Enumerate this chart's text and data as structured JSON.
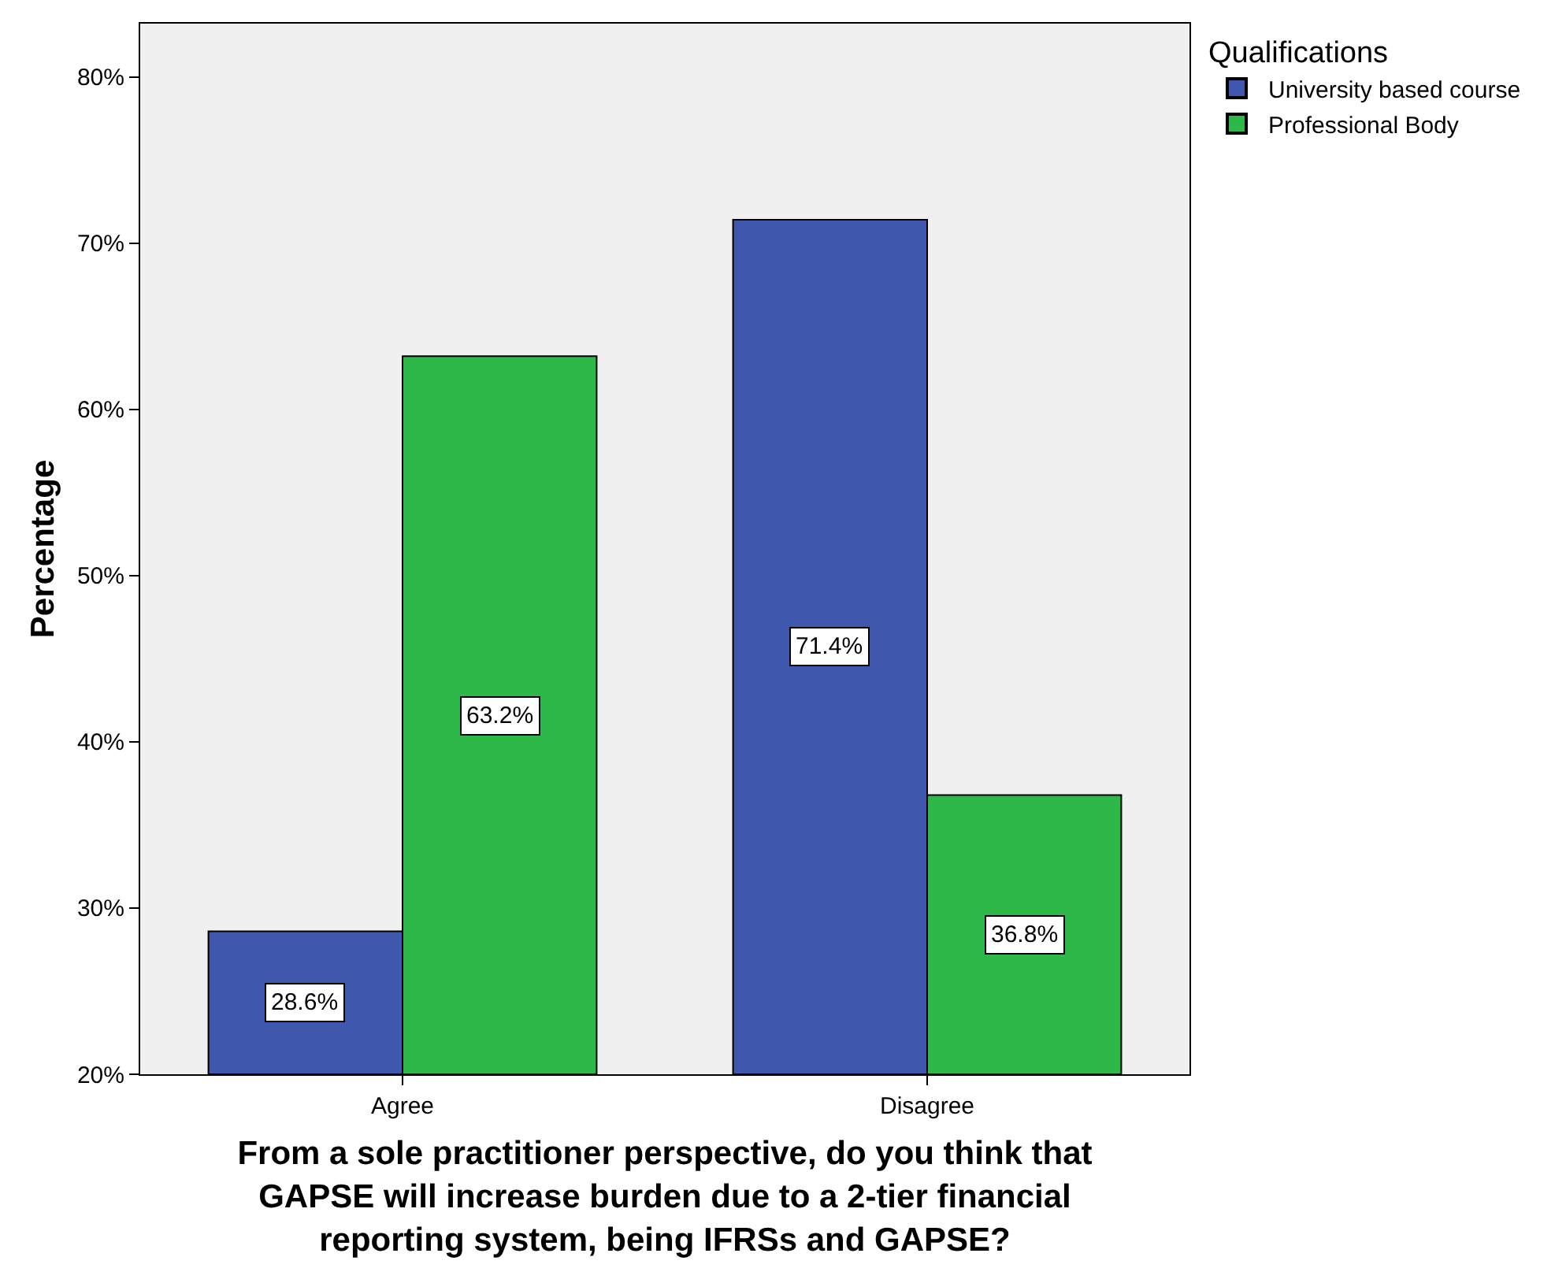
{
  "chart_data": {
    "type": "bar",
    "xlabel": "From a sole practitioner perspective, do you think that GAPSE will increase burden due to a 2-tier financial reporting system, being IFRSs and GAPSE?",
    "ylabel": "Percentage",
    "legend_title": "Qualifications",
    "categories": [
      "Agree",
      "Disagree"
    ],
    "series": [
      {
        "name": "University based course",
        "color": "#3f58ae",
        "values": [
          28.6,
          71.4
        ],
        "value_labels": [
          "28.6%",
          "71.4%"
        ]
      },
      {
        "name": "Professional Body",
        "color": "#2fb84a",
        "values": [
          63.2,
          36.8
        ],
        "value_labels": [
          "63.2%",
          "36.8%"
        ]
      }
    ],
    "ylim": [
      20,
      83.2
    ],
    "yticks": [
      {
        "value": 20,
        "label": "20%"
      },
      {
        "value": 30,
        "label": "30%"
      },
      {
        "value": 40,
        "label": "40%"
      },
      {
        "value": 50,
        "label": "50%"
      },
      {
        "value": 60,
        "label": "60%"
      },
      {
        "value": 70,
        "label": "70%"
      },
      {
        "value": 80,
        "label": "80%"
      }
    ],
    "grid": false,
    "legend": "top right"
  }
}
